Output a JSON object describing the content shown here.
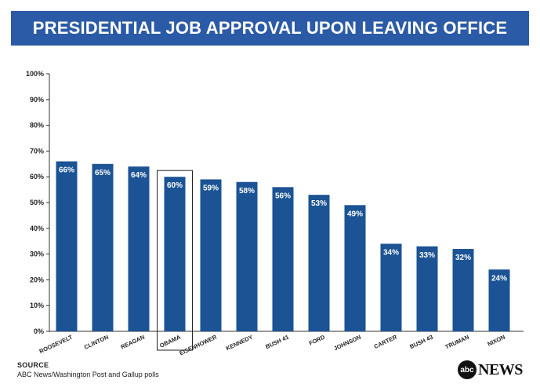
{
  "title": "PRESIDENTIAL JOB APPROVAL UPON LEAVING OFFICE",
  "colors": {
    "bar": "#1b5394",
    "title_bg": "#2b5aa6",
    "highlight_box": "#222222"
  },
  "source": {
    "heading": "SOURCE",
    "text": "ABC News/Washington Post and Gallup polls"
  },
  "logo": {
    "mark": "abc",
    "word": "NEWS"
  },
  "chart_data": {
    "type": "bar",
    "categories": [
      "ROOSEVELT",
      "CLINTON",
      "REAGAN",
      "OBAMA",
      "EISENHOWER",
      "KENNEDY",
      "BUSH 41",
      "FORD",
      "JOHNSON",
      "CARTER",
      "BUSH 43",
      "TRUMAN",
      "NIXON"
    ],
    "values": [
      66,
      65,
      64,
      60,
      59,
      58,
      56,
      53,
      49,
      34,
      33,
      32,
      24
    ],
    "value_labels": [
      "66%",
      "65%",
      "64%",
      "60%",
      "59%",
      "58%",
      "56%",
      "53%",
      "49%",
      "34%",
      "33%",
      "32%",
      "24%"
    ],
    "highlight": "OBAMA",
    "ylim": [
      0,
      100
    ],
    "yticks": [
      "0%",
      "10%",
      "20%",
      "30%",
      "40%",
      "50%",
      "60%",
      "70%",
      "80%",
      "90%",
      "100%"
    ],
    "grid": false,
    "xlabel": "",
    "ylabel": ""
  }
}
